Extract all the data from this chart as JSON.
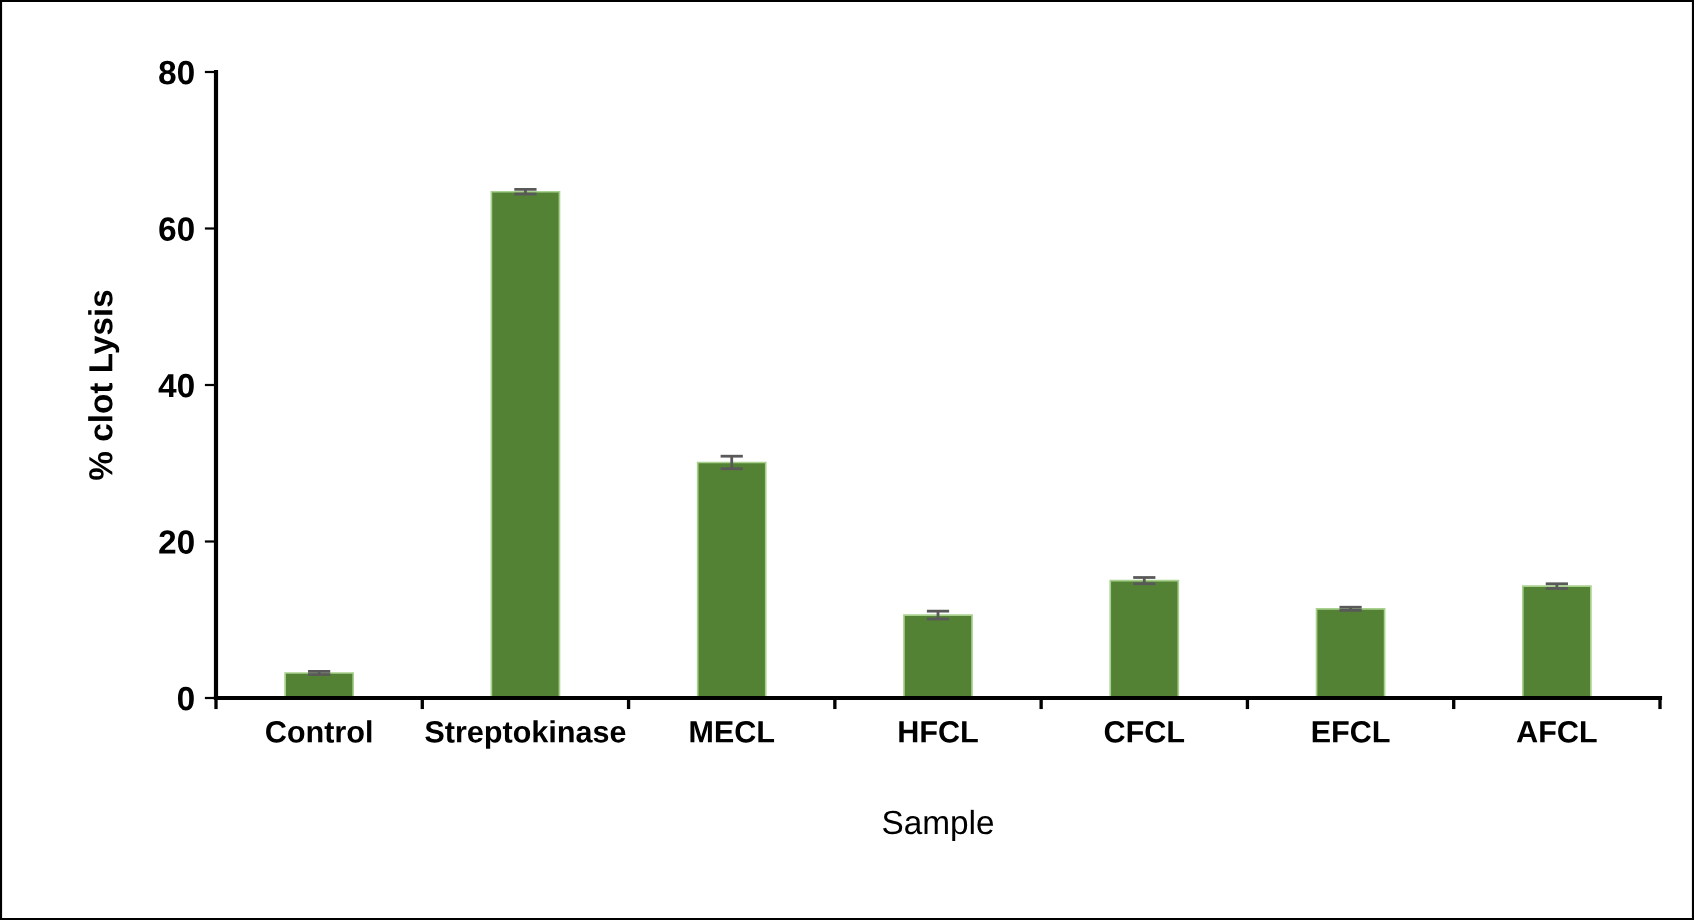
{
  "chart_data": {
    "type": "bar",
    "xlabel": "Sample",
    "ylabel": "% clot Lysis",
    "categories": [
      "Control",
      "Streptokinase",
      "MECL",
      "HFCL",
      "CFCL",
      "EFCL",
      "AFCL"
    ],
    "values": [
      3.2,
      64.7,
      30.1,
      10.6,
      15.0,
      11.4,
      14.3
    ],
    "errors": [
      0.2,
      0.3,
      0.8,
      0.5,
      0.4,
      0.2,
      0.3
    ],
    "color": "#548235",
    "ylim": [
      0,
      80
    ],
    "yticks": [
      0,
      20,
      40,
      60,
      80
    ],
    "grid": false,
    "legend": false
  }
}
